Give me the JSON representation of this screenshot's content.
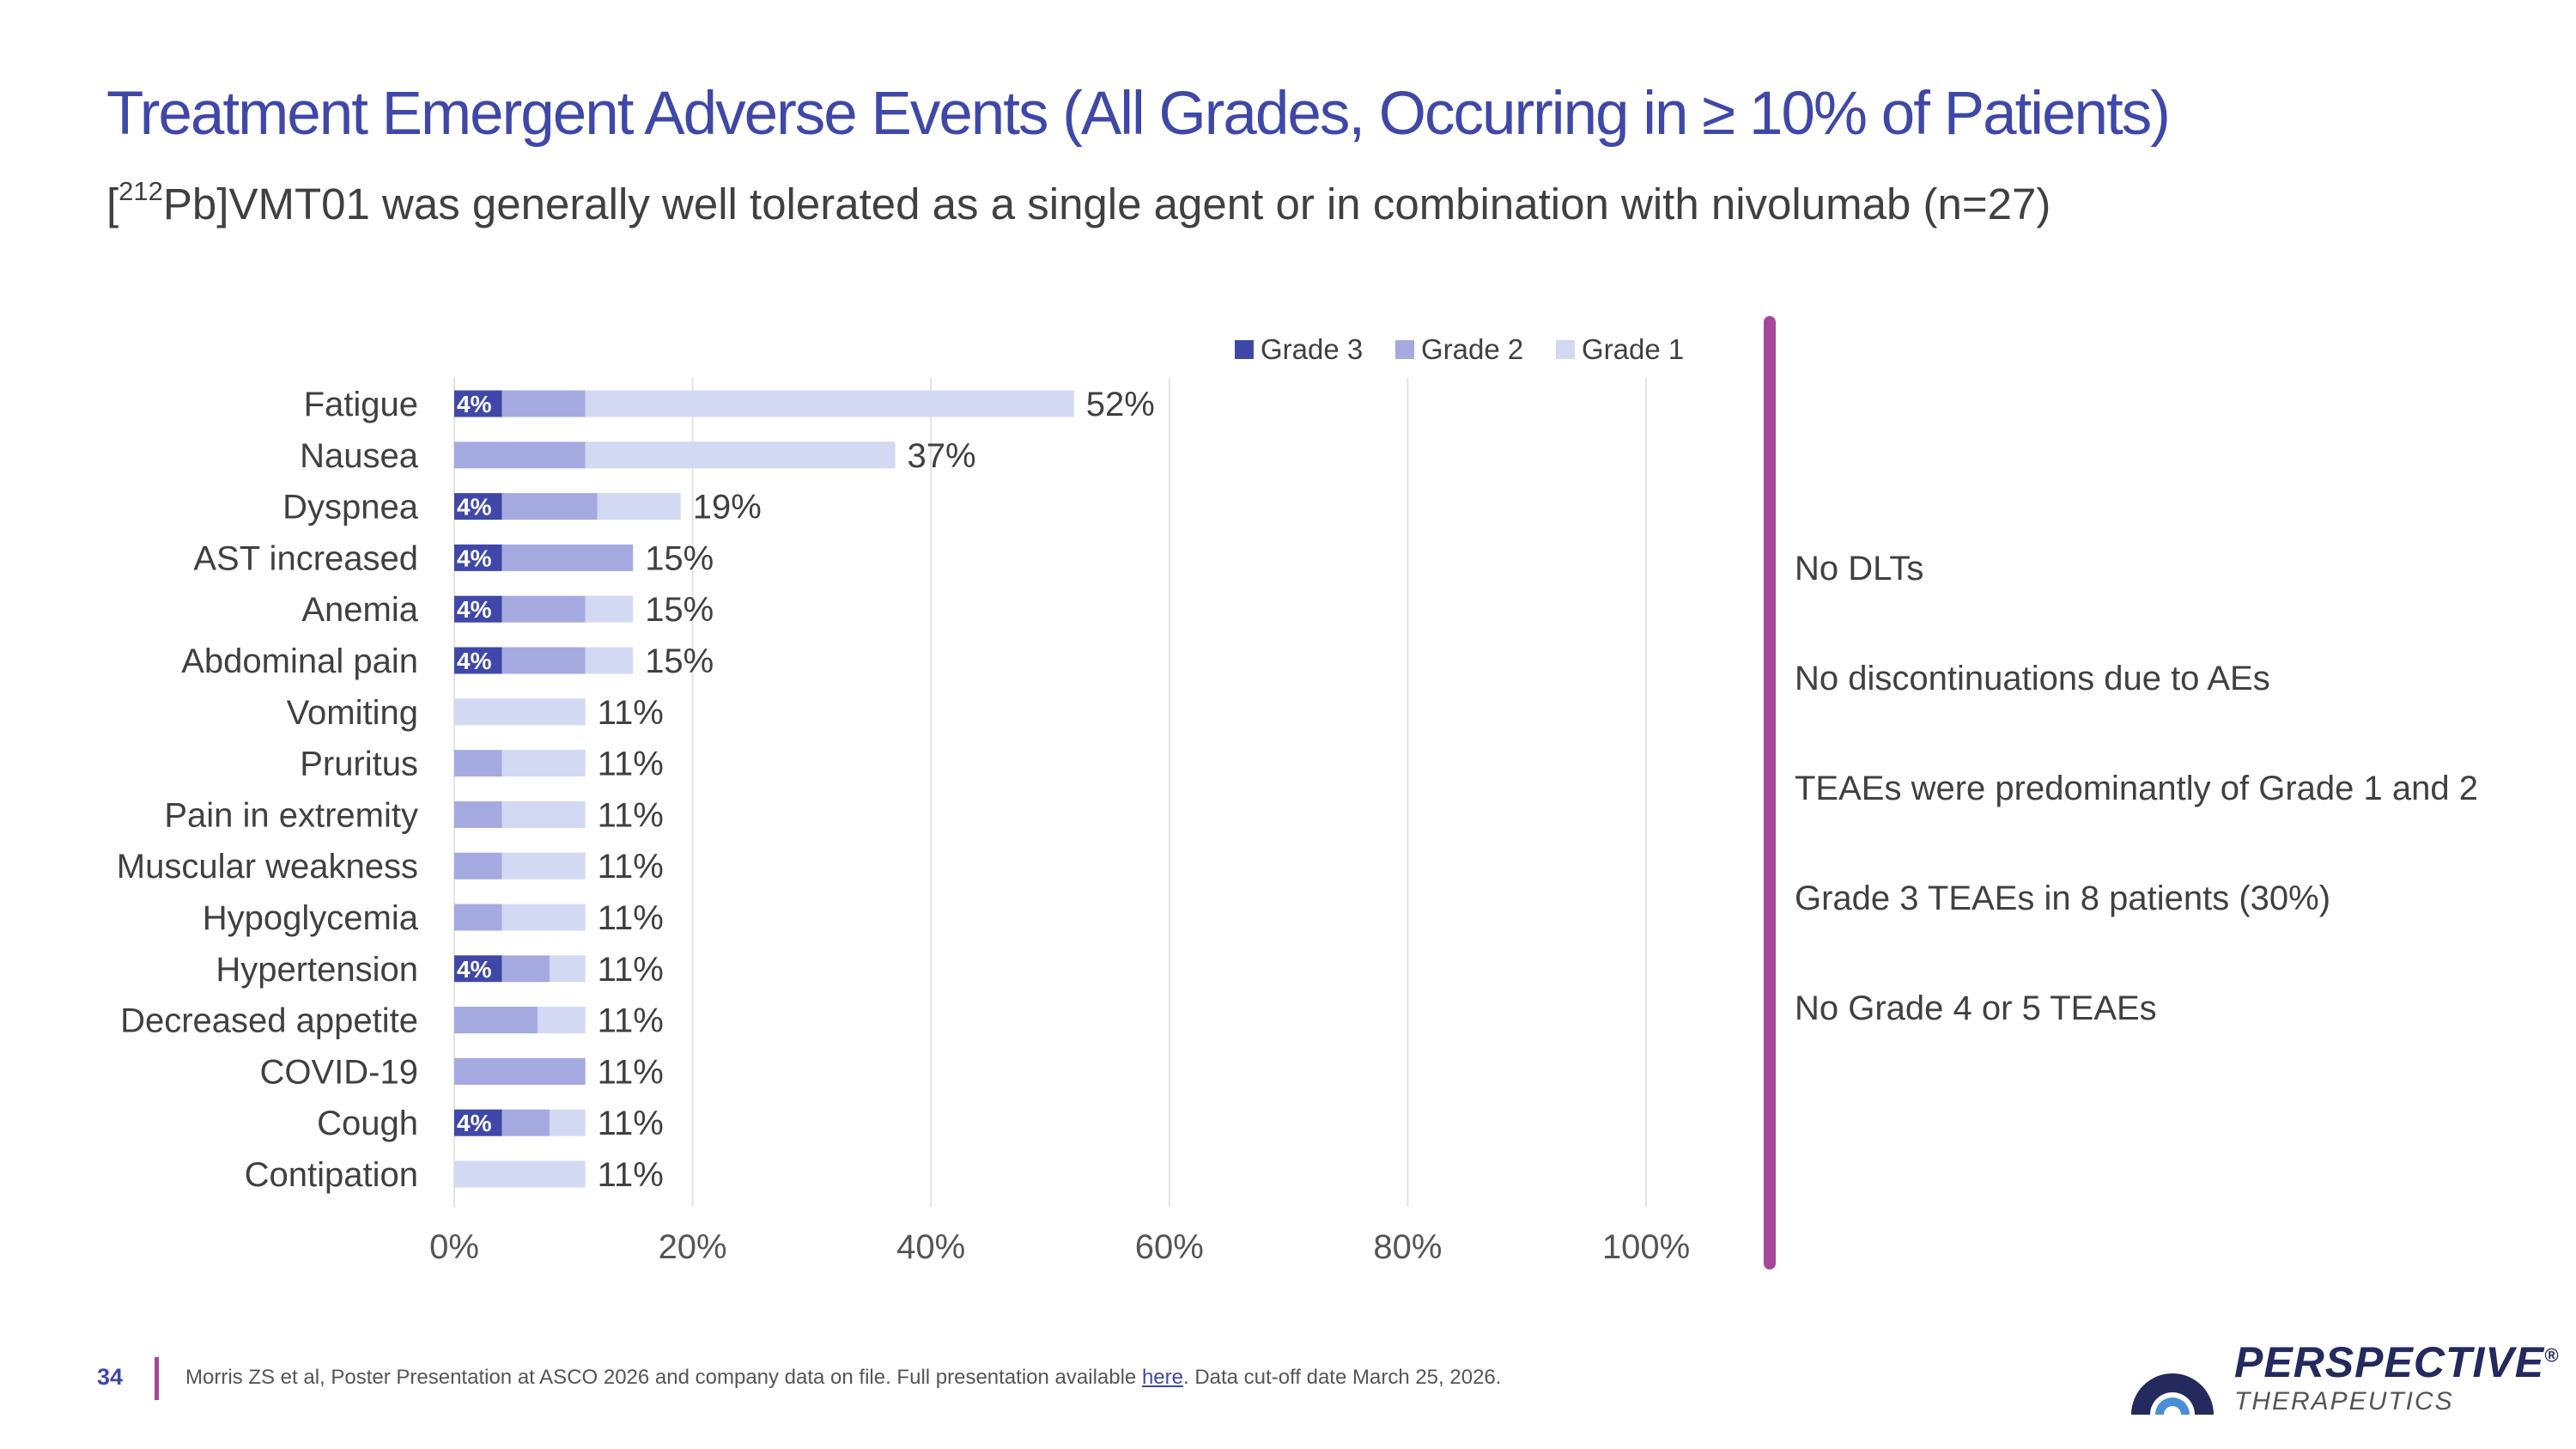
{
  "header": {
    "title": "Treatment Emergent Adverse Events (All Grades, Occurring in ≥ 10% of Patients)",
    "subtitle_sup": "212",
    "subtitle_open": "[",
    "subtitle_rest": "Pb]VMT01 was generally well tolerated as a single agent or in combination with nivolumab (n=27)"
  },
  "chart_data": {
    "type": "bar",
    "orientation": "horizontal",
    "stacked": true,
    "categories": [
      "Fatigue",
      "Nausea",
      "Dyspnea",
      "AST increased",
      "Anemia",
      "Abdominal pain",
      "Vomiting",
      "Pruritus",
      "Pain in extremity",
      "Muscular weakness",
      "Hypoglycemia",
      "Hypertension",
      "Decreased appetite",
      "COVID-19",
      "Cough",
      "Contipation"
    ],
    "series": [
      {
        "name": "Grade 3",
        "color": "#3f48a8",
        "values": [
          4,
          0,
          4,
          4,
          4,
          4,
          0,
          0,
          0,
          0,
          0,
          4,
          0,
          0,
          4,
          0
        ]
      },
      {
        "name": "Grade 2",
        "color": "#a4aae0",
        "values": [
          7,
          11,
          8,
          11,
          7,
          7,
          0,
          4,
          4,
          4,
          4,
          4,
          7,
          11,
          4,
          0
        ]
      },
      {
        "name": "Grade 1",
        "color": "#d3d8f3",
        "values": [
          41,
          26,
          7,
          0,
          4,
          4,
          11,
          7,
          7,
          7,
          7,
          3,
          4,
          0,
          3,
          11
        ]
      }
    ],
    "segment_labels": {
      "series": "Grade 3",
      "text": "4%"
    },
    "total_labels": [
      "52%",
      "37%",
      "19%",
      "15%",
      "15%",
      "15%",
      "11%",
      "11%",
      "11%",
      "11%",
      "11%",
      "11%",
      "11%",
      "11%",
      "11%",
      "11%"
    ],
    "xlim": [
      0,
      100
    ],
    "xticks": [
      "0%",
      "20%",
      "40%",
      "60%",
      "80%",
      "100%"
    ],
    "grid": "vertical",
    "legend_position": "top-right"
  },
  "notes": [
    "No DLTs",
    "No discontinuations due to AEs",
    "TEAEs were predominantly of Grade 1 and 2",
    "Grade 3 TEAEs in 8 patients (30%)",
    "No Grade 4  or 5 TEAEs"
  ],
  "footer": {
    "page_number": "34",
    "citation_before": "Morris ZS et al, Poster Presentation at ASCO 2026 and company data on file. Full presentation available ",
    "citation_link": "here",
    "citation_after": ". Data cut-off date March 25, 2026."
  },
  "logo": {
    "name": "PERSPECTIVE",
    "mark": "®",
    "sub": "THERAPEUTICS",
    "colors": {
      "navy": "#24295e",
      "blue": "#4a8fd6"
    }
  }
}
